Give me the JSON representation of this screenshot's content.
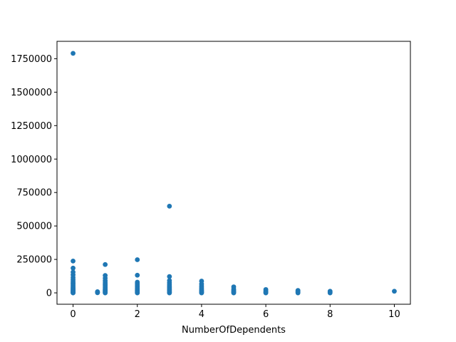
{
  "chart_data": {
    "type": "scatter",
    "title": "",
    "xlabel": "NumberOfDependents",
    "ylabel": "",
    "xlim": [
      -0.5,
      10.5
    ],
    "ylim": [
      -85000,
      1880000
    ],
    "xticks": [
      0,
      2,
      4,
      6,
      8,
      10
    ],
    "xtick_labels": [
      "0",
      "2",
      "4",
      "6",
      "8",
      "10"
    ],
    "yticks": [
      0,
      250000,
      500000,
      750000,
      1000000,
      1250000,
      1500000,
      1750000
    ],
    "ytick_labels": [
      "0",
      "250000",
      "500000",
      "750000",
      "1000000",
      "1250000",
      "1500000",
      "1750000"
    ],
    "grid": false,
    "legend": "none",
    "marker_color": "#1f77b4",
    "series": [
      {
        "x": [
          0,
          0,
          0,
          0,
          0,
          0,
          0,
          0,
          0,
          0,
          0,
          0,
          0,
          0,
          0,
          0,
          0,
          0,
          0,
          0,
          0,
          0,
          0.76,
          0.76,
          0.76,
          0.76,
          1,
          1,
          1,
          1,
          1,
          1,
          1,
          1,
          1,
          1,
          1,
          1,
          1,
          1,
          1,
          1,
          2,
          2,
          2,
          2,
          2,
          2,
          2,
          2,
          2,
          2,
          2,
          2,
          2,
          3,
          3,
          3,
          3,
          3,
          3,
          3,
          3,
          3,
          3,
          3,
          3,
          3,
          4,
          4,
          4,
          4,
          4,
          4,
          4,
          4,
          4,
          4,
          5,
          5,
          5,
          5,
          5,
          5,
          6,
          6,
          6,
          6,
          6,
          7,
          7,
          7,
          7,
          8,
          8,
          8,
          10
        ],
        "y": [
          1790000,
          238000,
          185000,
          155000,
          135000,
          115000,
          100000,
          88000,
          76000,
          66000,
          56000,
          48000,
          40000,
          33000,
          26000,
          20000,
          15000,
          10000,
          6000,
          3000,
          1000,
          0,
          9000,
          6000,
          3000,
          1000,
          212000,
          130000,
          110000,
          92000,
          80000,
          68000,
          58000,
          48000,
          40000,
          32000,
          25000,
          18000,
          12000,
          7000,
          3000,
          0,
          248000,
          132000,
          80000,
          66000,
          54000,
          44000,
          35000,
          27000,
          20000,
          13000,
          8000,
          3000,
          0,
          648000,
          122000,
          92000,
          76000,
          64000,
          52000,
          42000,
          33000,
          25000,
          18000,
          11000,
          5000,
          0,
          88000,
          66000,
          50000,
          38000,
          28000,
          20000,
          13000,
          7000,
          3000,
          0,
          45000,
          28000,
          18000,
          10000,
          4000,
          0,
          25000,
          15000,
          8000,
          3000,
          0,
          18000,
          10000,
          5000,
          0,
          12000,
          5000,
          0,
          12000
        ]
      }
    ]
  }
}
